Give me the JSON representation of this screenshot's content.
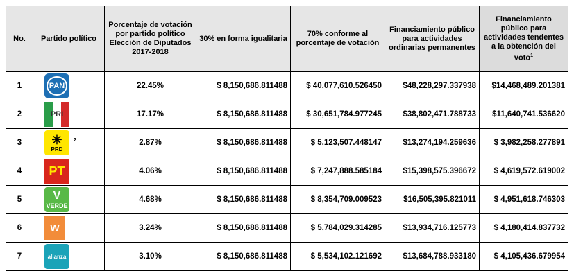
{
  "headers": [
    "No.",
    "Partido político",
    "Porcentaje de votación por partido político Elección de Diputados 2017-2018",
    "30% en forma igualitaria",
    "70% conforme al porcentaje de votación",
    "Financiamiento público para actividades ordinarias permanentes",
    "Financiamiento público para actividades tendentes a la obtención del voto"
  ],
  "header_footnote": "1",
  "rows": [
    {
      "no": "1",
      "logo": "PAN",
      "pct": "22.45%",
      "c30": "$ 8,150,686.811488",
      "c70": "$ 40,077,610.526450",
      "ord": "$48,228,297.337938",
      "voto": "$14,468,489.201381"
    },
    {
      "no": "2",
      "logo": "PRI",
      "pct": "17.17%",
      "c30": "$ 8,150,686.811488",
      "c70": "$ 30,651,784.977245",
      "ord": "$38,802,471.788733",
      "voto": "$11,640,741.536620"
    },
    {
      "no": "3",
      "logo": "PRD",
      "footnote": "2",
      "pct": "2.87%",
      "c30": "$ 8,150,686.811488",
      "c70": "$ 5,123,507.448147",
      "ord": "$13,274,194.259636",
      "voto": "$ 3,982,258.277891"
    },
    {
      "no": "4",
      "logo": "PT",
      "pct": "4.06%",
      "c30": "$ 8,150,686.811488",
      "c70": "$ 7,247,888.585184",
      "ord": "$15,398,575.396672",
      "voto": "$ 4,619,572.619002"
    },
    {
      "no": "5",
      "logo": "VERDE",
      "pct": "4.68%",
      "c30": "$ 8,150,686.811488",
      "c70": "$ 8,354,709.009523",
      "ord": "$16,505,395.821011",
      "voto": "$ 4,951,618.746303"
    },
    {
      "no": "6",
      "logo": "MC",
      "pct": "3.24%",
      "c30": "$ 8,150,686.811488",
      "c70": "$ 5,784,029.314285",
      "ord": "$13,934,716.125773",
      "voto": "$ 4,180,414.837732"
    },
    {
      "no": "7",
      "logo": "alianza",
      "pct": "3.10%",
      "c30": "$ 8,150,686.811488",
      "c70": "$ 5,534,102.121692",
      "ord": "$13,684,788.933180",
      "voto": "$ 4,105,436.679954"
    }
  ],
  "colors": {
    "PAN": "#1d6fb4",
    "PRI_green": "#2a9d49",
    "PRI_red": "#d32a2a",
    "PRD": "#ffe600",
    "PT": "#d9261c",
    "VERDE": "#59b947",
    "MC": "#f28c3a",
    "alianza": "#1aa3b8"
  }
}
